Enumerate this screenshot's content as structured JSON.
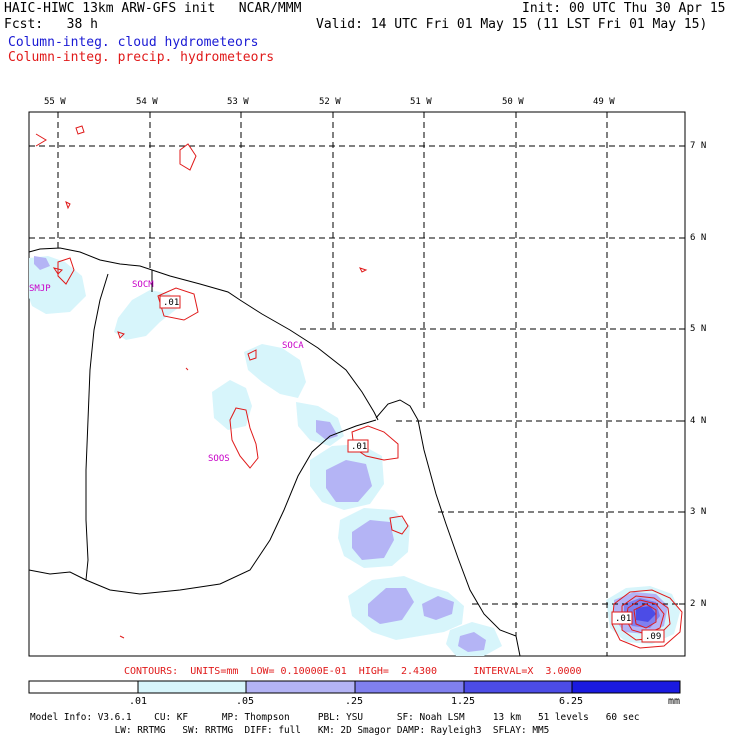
{
  "header": {
    "title_left": "HAIC-HIWC 13km ARW-GFS init   NCAR/MMM",
    "init": "Init: 00 UTC Thu 30 Apr 15",
    "fcst": "Fcst:   38 h",
    "valid": "Valid: 14 UTC Fri 01 May 15 (11 LST Fri 01 May 15)",
    "field_cloud": "Column-integ. cloud hydrometeors",
    "field_precip": "Column-integ. precip. hydrometeors"
  },
  "map": {
    "lon_labels": [
      "55 W",
      "54 W",
      "53 W",
      "52 W",
      "51 W",
      "50 W",
      "49 W"
    ],
    "lat_labels": [
      "7 N",
      "6 N",
      "5 N",
      "4 N",
      "3 N",
      "2 N"
    ],
    "stations": [
      "SMJP",
      "SOCM",
      "SOCA",
      "SOOS"
    ],
    "contour_labels": [
      ".01",
      ".01",
      ".01",
      ".09"
    ]
  },
  "contour_info": "CONTOURS:  UNITS=mm  LOW= 0.10000E-01  HIGH=  2.4300      INTERVAL=X  3.0000",
  "colorbar": {
    "labels": [
      ".01",
      ".05",
      ".25",
      "1.25",
      "6.25",
      "mm"
    ],
    "colors": [
      "#ffffff",
      "#d7f5fb",
      "#b4b4f5",
      "#8080ef",
      "#4c4ce6",
      "#1a1ae0"
    ]
  },
  "footer": {
    "line1": "Model Info: V3.6.1    CU: KF      MP: Thompson     PBL: YSU      SF: Noah LSM     13 km   51 levels   60 sec",
    "line2": "               LW: RRTMG   SW: RRTMG  DIFF: full   KM: 2D Smagor DAMP: Rayleigh3  SFLAY: MM5"
  }
}
